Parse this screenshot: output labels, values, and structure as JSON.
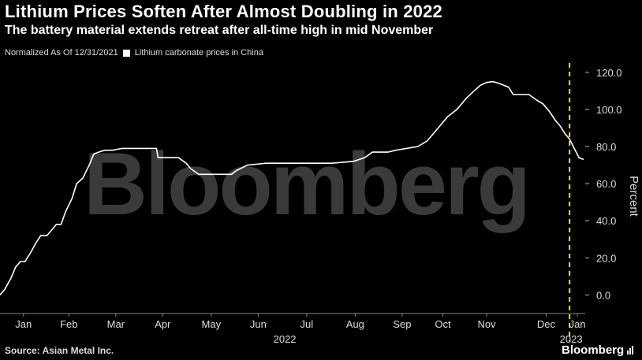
{
  "header": {
    "title": "Lithium Prices Soften After Almost Doubling in 2022",
    "subtitle": "The battery material extends retreat after all-time high in mid November"
  },
  "legend": {
    "note": "Normalized As Of 12/31/2021",
    "series_label": "Lithium carbonate prices in China"
  },
  "footer": {
    "source": "Source: Asian Metal Inc.",
    "brand": "Bloomberg"
  },
  "watermark": "Bloomberg",
  "colors": {
    "background": "#000000",
    "series": "#ffffff",
    "marker_line": "#f5e010",
    "watermark": "#3a3a3a"
  },
  "chart_data": {
    "type": "line",
    "ylabel": "Percent",
    "ylim": [
      -10,
      125
    ],
    "yticks": [
      0,
      20,
      40,
      60,
      80,
      100,
      120
    ],
    "ytick_labels": [
      "0.0",
      "20.0",
      "40.0",
      "60.0",
      "80.0",
      "100.0",
      "120.0"
    ],
    "xlim": [
      "2022-01-01",
      "2023-01-10"
    ],
    "x_ticks": [
      {
        "date": "2022-01-16",
        "label": "Jan"
      },
      {
        "date": "2022-02-14",
        "label": "Feb"
      },
      {
        "date": "2022-03-16",
        "label": "Mar"
      },
      {
        "date": "2022-04-15",
        "label": "Apr"
      },
      {
        "date": "2022-05-16",
        "label": "May"
      },
      {
        "date": "2022-06-15",
        "label": "Jun"
      },
      {
        "date": "2022-07-16",
        "label": "Jul"
      },
      {
        "date": "2022-08-16",
        "label": "Aug"
      },
      {
        "date": "2022-09-15",
        "label": "Sep"
      },
      {
        "date": "2022-10-11",
        "label": "Oct"
      },
      {
        "date": "2022-11-08",
        "label": "Nov"
      },
      {
        "date": "2022-12-16",
        "label": "Dec"
      },
      {
        "date": "2023-01-05",
        "label": "Jan"
      }
    ],
    "year_labels": [
      {
        "date": "2022-07-02",
        "label": "2022"
      },
      {
        "date": "2023-01-01",
        "label": "2023"
      }
    ],
    "vertical_marker": "2022-12-31",
    "series": [
      {
        "name": "Lithium carbonate prices in China",
        "points": [
          [
            "2022-01-01",
            0
          ],
          [
            "2022-01-04",
            3
          ],
          [
            "2022-01-08",
            9
          ],
          [
            "2022-01-11",
            15
          ],
          [
            "2022-01-14",
            18
          ],
          [
            "2022-01-17",
            18
          ],
          [
            "2022-01-20",
            22
          ],
          [
            "2022-01-24",
            28
          ],
          [
            "2022-01-27",
            32
          ],
          [
            "2022-01-31",
            32
          ],
          [
            "2022-02-03",
            35
          ],
          [
            "2022-02-06",
            38
          ],
          [
            "2022-02-09",
            38
          ],
          [
            "2022-02-12",
            45
          ],
          [
            "2022-02-16",
            52
          ],
          [
            "2022-02-19",
            60
          ],
          [
            "2022-02-23",
            63
          ],
          [
            "2022-02-27",
            70
          ],
          [
            "2022-03-02",
            76
          ],
          [
            "2022-03-05",
            77
          ],
          [
            "2022-03-09",
            78
          ],
          [
            "2022-03-14",
            78
          ],
          [
            "2022-03-20",
            79
          ],
          [
            "2022-04-01",
            79
          ],
          [
            "2022-04-11",
            79
          ],
          [
            "2022-04-12",
            74
          ],
          [
            "2022-04-25",
            74
          ],
          [
            "2022-04-30",
            71
          ],
          [
            "2022-05-03",
            68
          ],
          [
            "2022-05-08",
            65
          ],
          [
            "2022-05-18",
            65
          ],
          [
            "2022-05-29",
            65
          ],
          [
            "2022-06-01",
            67
          ],
          [
            "2022-06-08",
            70
          ],
          [
            "2022-06-20",
            71
          ],
          [
            "2022-07-01",
            71
          ],
          [
            "2022-07-15",
            71
          ],
          [
            "2022-08-01",
            71
          ],
          [
            "2022-08-15",
            72
          ],
          [
            "2022-08-22",
            74
          ],
          [
            "2022-08-27",
            77
          ],
          [
            "2022-09-06",
            77
          ],
          [
            "2022-09-11",
            78
          ],
          [
            "2022-09-25",
            80
          ],
          [
            "2022-10-01",
            83
          ],
          [
            "2022-10-05",
            87
          ],
          [
            "2022-10-09",
            91
          ],
          [
            "2022-10-14",
            96
          ],
          [
            "2022-10-20",
            100
          ],
          [
            "2022-10-26",
            106
          ],
          [
            "2022-10-31",
            110
          ],
          [
            "2022-11-04",
            113
          ],
          [
            "2022-11-08",
            114.5
          ],
          [
            "2022-11-12",
            115
          ],
          [
            "2022-11-16",
            114
          ],
          [
            "2022-11-22",
            112
          ],
          [
            "2022-11-25",
            108
          ],
          [
            "2022-12-05",
            108
          ],
          [
            "2022-12-10",
            105
          ],
          [
            "2022-12-14",
            103
          ],
          [
            "2022-12-18",
            99
          ],
          [
            "2022-12-22",
            94
          ],
          [
            "2022-12-25",
            91
          ],
          [
            "2022-12-28",
            87
          ],
          [
            "2022-12-31",
            84
          ],
          [
            "2023-01-03",
            79
          ],
          [
            "2023-01-06",
            74
          ],
          [
            "2023-01-09",
            73
          ]
        ]
      }
    ]
  }
}
